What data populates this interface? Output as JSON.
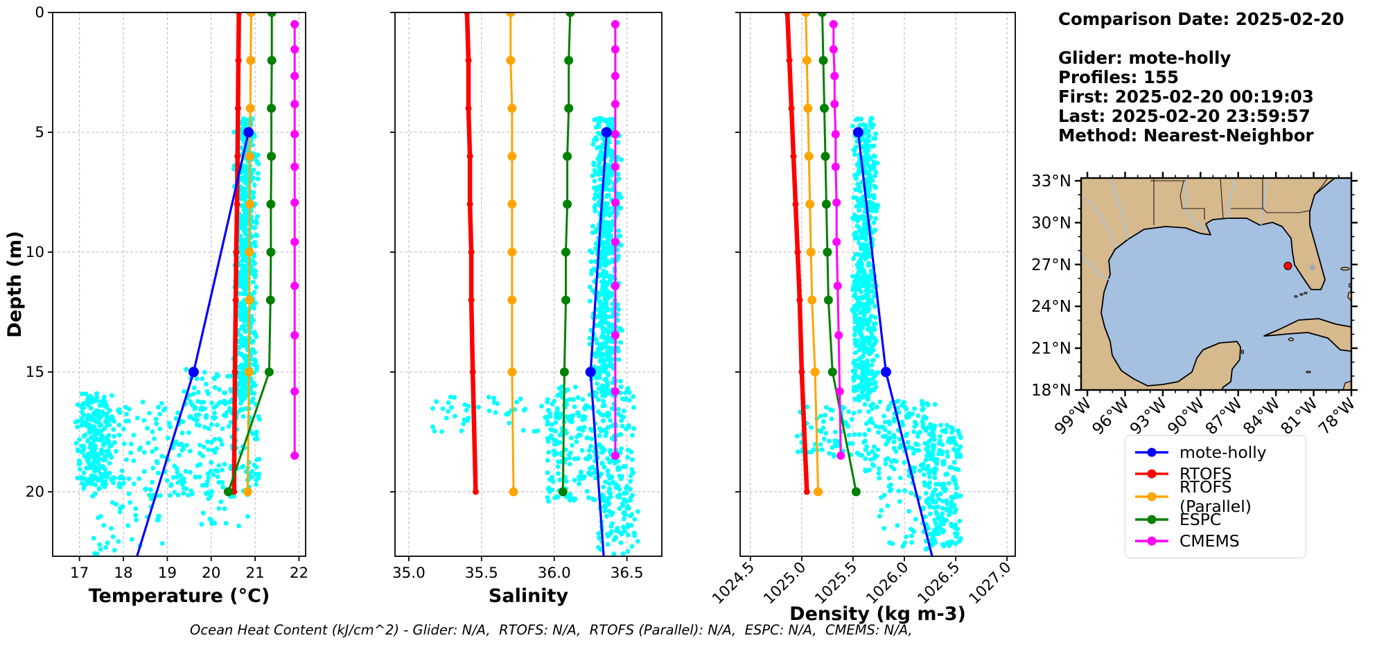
{
  "info": {
    "comparison_date": "Comparison Date: 2025-02-20",
    "glider": "Glider: mote-holly",
    "profiles": "Profiles: 155",
    "first": "First: 2025-02-20 00:19:03",
    "last": "Last: 2025-02-20 23:59:57",
    "method": "Method: Nearest-Neighbor"
  },
  "footer": "Ocean Heat Content (kJ/cm^2) - Glider: N/A,  RTOFS: N/A,  RTOFS (Parallel): N/A,  ESPC: N/A,  CMEMS: N/A,",
  "colors": {
    "glider_scatter": "#00ffff",
    "mote_holly": "#0000ff",
    "rtofs": "#ff0000",
    "rtofs_parallel": "#ffa500",
    "espc": "#008000",
    "cmems": "#ff00ff",
    "grid": "#b8b8b8"
  },
  "legend": {
    "entries": [
      {
        "label": "mote-holly",
        "color": "#0000ff"
      },
      {
        "label": "RTOFS",
        "color": "#ff0000"
      },
      {
        "label": "RTOFS (Parallel)",
        "color": "#ffa500"
      },
      {
        "label": "ESPC",
        "color": "#008000"
      },
      {
        "label": "CMEMS",
        "color": "#ff00ff"
      }
    ]
  },
  "map": {
    "land_color": "#d7b98e",
    "water_color": "#a5c0e0",
    "lake_color": "#a8a8a8",
    "lat_ticks": [
      {
        "deg": 33,
        "label": "33°N"
      },
      {
        "deg": 30,
        "label": "30°N"
      },
      {
        "deg": 27,
        "label": "27°N"
      },
      {
        "deg": 24,
        "label": "24°N"
      },
      {
        "deg": 21,
        "label": "21°N"
      },
      {
        "deg": 18,
        "label": "18°N"
      }
    ],
    "lon_ticks": [
      {
        "deg": -99,
        "label": "99°W"
      },
      {
        "deg": -96,
        "label": "96°W"
      },
      {
        "deg": -93,
        "label": "93°W"
      },
      {
        "deg": -90,
        "label": "90°W"
      },
      {
        "deg": -87,
        "label": "87°W"
      },
      {
        "deg": -84,
        "label": "84°W"
      },
      {
        "deg": -81,
        "label": "81°W"
      },
      {
        "deg": -78,
        "label": "78°W"
      }
    ],
    "marker": {
      "lon": -83.05,
      "lat": 26.9,
      "color": "#ff0000"
    }
  },
  "chart_data": [
    {
      "type": "scatter",
      "title": "",
      "xlabel": "Temperature (°C)",
      "ylabel": "Depth (m)",
      "xlim": [
        16.39,
        22.15
      ],
      "ylim": [
        0,
        22.69
      ],
      "xticks": [
        17,
        18,
        19,
        20,
        21,
        22
      ],
      "xtick_labels": [
        "17",
        "18",
        "19",
        "20",
        "21",
        "22"
      ],
      "yticks": [
        0,
        5,
        10,
        15,
        20
      ],
      "ytick_labels": [
        "0",
        "5",
        "10",
        "15",
        "20"
      ],
      "x_tick_rotation": 0,
      "show_ytick_labels": true,
      "series": [
        {
          "name": "glider-scatter",
          "color": "#00ffff",
          "marker_size": 3.4,
          "cloud": [
            {
              "x": [
                20.5,
                21.08
              ],
              "depth": [
                4.4,
                16.2
              ],
              "n": 620,
              "tri": true
            },
            {
              "x": [
                19.4,
                21.05
              ],
              "depth": [
                14.8,
                17.0
              ],
              "n": 60
            },
            {
              "x": [
                19.3,
                21.1
              ],
              "depth": [
                15.8,
                20.2
              ],
              "n": 170
            },
            {
              "x": [
                17.9,
                19.3
              ],
              "depth": [
                16.2,
                20.2
              ],
              "n": 90
            },
            {
              "x": [
                16.87,
                17.9
              ],
              "depth": [
                15.9,
                19.9
              ],
              "n": 260,
              "tri": true
            },
            {
              "x": [
                17.3,
                18.9
              ],
              "depth": [
                19.8,
                22.6
              ],
              "n": 40
            },
            {
              "x": [
                19.6,
                20.9
              ],
              "depth": [
                19.9,
                21.6
              ],
              "n": 14
            }
          ]
        },
        {
          "name": "RTOFS",
          "color": "#ff0000",
          "lw": 6.5,
          "marker_size": 4.5,
          "marker_indices": "all",
          "points": [
            [
              20.63,
              0
            ],
            [
              20.62,
              2
            ],
            [
              20.61,
              4
            ],
            [
              20.6,
              6
            ],
            [
              20.59,
              8
            ],
            [
              20.57,
              10
            ],
            [
              20.56,
              12
            ],
            [
              20.54,
              15
            ],
            [
              20.52,
              20
            ]
          ]
        },
        {
          "name": "RTOFS (Parallel)",
          "color": "#ffa500",
          "lw": 3,
          "marker_size": 6.5,
          "marker_indices": "all",
          "points": [
            [
              20.91,
              0
            ],
            [
              20.9,
              2
            ],
            [
              20.89,
              4
            ],
            [
              20.88,
              6
            ],
            [
              20.88,
              8
            ],
            [
              20.87,
              10
            ],
            [
              20.87,
              12
            ],
            [
              20.86,
              15
            ],
            [
              20.83,
              20
            ]
          ]
        },
        {
          "name": "ESPC",
          "color": "#008000",
          "lw": 3,
          "marker_size": 6.5,
          "marker_indices": "all",
          "points": [
            [
              21.38,
              0
            ],
            [
              21.38,
              2
            ],
            [
              21.37,
              4
            ],
            [
              21.37,
              6
            ],
            [
              21.36,
              8
            ],
            [
              21.36,
              10
            ],
            [
              21.35,
              12
            ],
            [
              21.32,
              15
            ],
            [
              20.39,
              20
            ]
          ]
        },
        {
          "name": "CMEMS",
          "color": "#ff00ff",
          "lw": 3,
          "marker_size": 6,
          "marker_indices": "all",
          "points": [
            [
              21.9,
              0.49
            ],
            [
              21.9,
              1.54
            ],
            [
              21.9,
              2.65
            ],
            [
              21.9,
              3.82
            ],
            [
              21.9,
              5.08
            ],
            [
              21.9,
              6.44
            ],
            [
              21.9,
              7.93
            ],
            [
              21.9,
              9.57
            ],
            [
              21.9,
              11.41
            ],
            [
              21.9,
              13.47
            ],
            [
              21.9,
              15.81
            ],
            [
              21.9,
              18.49
            ]
          ]
        },
        {
          "name": "mote-holly",
          "color": "#0000ff",
          "lw": 3.2,
          "marker_size": 7.5,
          "marker_indices": [
            0,
            1
          ],
          "points": [
            [
              20.85,
              5
            ],
            [
              19.6,
              15
            ],
            [
              18.31,
              22.69
            ]
          ]
        }
      ]
    },
    {
      "type": "scatter",
      "title": "",
      "xlabel": "Salinity",
      "ylabel": "",
      "xlim": [
        34.905,
        36.74
      ],
      "ylim": [
        0,
        22.69
      ],
      "xticks": [
        35.0,
        35.5,
        36.0,
        36.5
      ],
      "xtick_labels": [
        "35.0",
        "35.5",
        "36.0",
        "36.5"
      ],
      "yticks": [
        0,
        5,
        10,
        15,
        20
      ],
      "ytick_labels": [
        "0",
        "5",
        "10",
        "15",
        "20"
      ],
      "x_tick_rotation": 0,
      "show_ytick_labels": false,
      "series": [
        {
          "name": "glider-scatter",
          "color": "#00ffff",
          "marker_size": 3.4,
          "cloud": [
            {
              "x": [
                36.24,
                36.47
              ],
              "depth": [
                4.4,
                16.0
              ],
              "n": 620,
              "tri": true
            },
            {
              "x": [
                35.15,
                36.0
              ],
              "depth": [
                16.0,
                17.5
              ],
              "n": 45
            },
            {
              "x": [
                35.95,
                36.55
              ],
              "depth": [
                15.6,
                20.4
              ],
              "n": 330
            },
            {
              "x": [
                36.3,
                36.58
              ],
              "depth": [
                20.2,
                22.6
              ],
              "n": 70
            }
          ]
        },
        {
          "name": "RTOFS",
          "color": "#ff0000",
          "lw": 6.5,
          "marker_size": 4.5,
          "marker_indices": "all",
          "points": [
            [
              35.4,
              0
            ],
            [
              35.41,
              2
            ],
            [
              35.41,
              4
            ],
            [
              35.42,
              6
            ],
            [
              35.42,
              8
            ],
            [
              35.43,
              10
            ],
            [
              35.43,
              12
            ],
            [
              35.44,
              15
            ],
            [
              35.46,
              20
            ]
          ]
        },
        {
          "name": "RTOFS (Parallel)",
          "color": "#ffa500",
          "lw": 3,
          "marker_size": 6.5,
          "marker_indices": "all",
          "points": [
            [
              35.7,
              0
            ],
            [
              35.7,
              2
            ],
            [
              35.71,
              4
            ],
            [
              35.71,
              6
            ],
            [
              35.71,
              8
            ],
            [
              35.71,
              10
            ],
            [
              35.71,
              12
            ],
            [
              35.71,
              15
            ],
            [
              35.72,
              20
            ]
          ]
        },
        {
          "name": "ESPC",
          "color": "#008000",
          "lw": 3,
          "marker_size": 6.5,
          "marker_indices": "all",
          "points": [
            [
              36.11,
              0
            ],
            [
              36.1,
              2
            ],
            [
              36.1,
              4
            ],
            [
              36.09,
              6
            ],
            [
              36.09,
              8
            ],
            [
              36.08,
              10
            ],
            [
              36.08,
              12
            ],
            [
              36.07,
              15
            ],
            [
              36.06,
              20
            ]
          ]
        },
        {
          "name": "CMEMS",
          "color": "#ff00ff",
          "lw": 3,
          "marker_size": 6,
          "marker_indices": "all",
          "points": [
            [
              36.42,
              0.49
            ],
            [
              36.42,
              1.54
            ],
            [
              36.42,
              2.65
            ],
            [
              36.42,
              3.82
            ],
            [
              36.42,
              5.08
            ],
            [
              36.42,
              6.44
            ],
            [
              36.42,
              7.93
            ],
            [
              36.42,
              9.57
            ],
            [
              36.42,
              11.41
            ],
            [
              36.42,
              13.47
            ],
            [
              36.42,
              15.81
            ],
            [
              36.42,
              18.49
            ]
          ]
        },
        {
          "name": "mote-holly",
          "color": "#0000ff",
          "lw": 3.2,
          "marker_size": 7.5,
          "marker_indices": [
            0,
            1
          ],
          "points": [
            [
              36.36,
              5
            ],
            [
              36.25,
              15
            ],
            [
              36.34,
              22.69
            ]
          ]
        }
      ]
    },
    {
      "type": "scatter",
      "title": "",
      "xlabel": "Density (kg m-3)",
      "ylabel": "",
      "xlim": [
        1024.4,
        1027.08
      ],
      "ylim": [
        0,
        22.69
      ],
      "xticks": [
        1024.5,
        1025.0,
        1025.5,
        1026.0,
        1026.5,
        1027.0
      ],
      "xtick_labels": [
        "1024.5",
        "1025.0",
        "1025.5",
        "1026.0",
        "1026.5",
        "1027.0"
      ],
      "yticks": [
        0,
        5,
        10,
        15,
        20
      ],
      "ytick_labels": [
        "0",
        "5",
        "10",
        "15",
        "20"
      ],
      "x_tick_rotation": 45,
      "show_ytick_labels": false,
      "series": [
        {
          "name": "glider-scatter",
          "color": "#00ffff",
          "marker_size": 3.4,
          "cloud": [
            {
              "x": [
                1025.47,
                1025.75
              ],
              "depth": [
                4.4,
                16.2
              ],
              "n": 620,
              "tri": true
            },
            {
              "x": [
                1024.93,
                1025.6
              ],
              "depth": [
                16.4,
                18.6
              ],
              "n": 70
            },
            {
              "x": [
                1025.6,
                1026.3
              ],
              "depth": [
                16.2,
                19.2
              ],
              "n": 150
            },
            {
              "x": [
                1026.18,
                1026.55
              ],
              "depth": [
                17.2,
                22.5
              ],
              "n": 230
            },
            {
              "x": [
                1025.75,
                1026.15
              ],
              "depth": [
                19.0,
                22.3
              ],
              "n": 40
            }
          ]
        },
        {
          "name": "RTOFS",
          "color": "#ff0000",
          "lw": 6.5,
          "marker_size": 4.5,
          "marker_indices": "all",
          "points": [
            [
              1024.86,
              0
            ],
            [
              1024.88,
              2
            ],
            [
              1024.9,
              4
            ],
            [
              1024.92,
              6
            ],
            [
              1024.94,
              8
            ],
            [
              1024.96,
              10
            ],
            [
              1024.98,
              12
            ],
            [
              1025.0,
              15
            ],
            [
              1025.05,
              20
            ]
          ]
        },
        {
          "name": "RTOFS (Parallel)",
          "color": "#ffa500",
          "lw": 3,
          "marker_size": 6.5,
          "marker_indices": "all",
          "points": [
            [
              1025.04,
              0
            ],
            [
              1025.05,
              2
            ],
            [
              1025.06,
              4
            ],
            [
              1025.07,
              6
            ],
            [
              1025.08,
              8
            ],
            [
              1025.09,
              10
            ],
            [
              1025.1,
              12
            ],
            [
              1025.13,
              15
            ],
            [
              1025.16,
              20
            ]
          ]
        },
        {
          "name": "ESPC",
          "color": "#008000",
          "lw": 3,
          "marker_size": 6.5,
          "marker_indices": "all",
          "points": [
            [
              1025.2,
              0
            ],
            [
              1025.21,
              2
            ],
            [
              1025.22,
              4
            ],
            [
              1025.23,
              6
            ],
            [
              1025.24,
              8
            ],
            [
              1025.25,
              10
            ],
            [
              1025.26,
              12
            ],
            [
              1025.3,
              15
            ],
            [
              1025.53,
              20
            ]
          ]
        },
        {
          "name": "CMEMS",
          "color": "#ff00ff",
          "lw": 3,
          "marker_size": 6,
          "marker_indices": "all",
          "points": [
            [
              1025.31,
              0.49
            ],
            [
              1025.31,
              1.54
            ],
            [
              1025.32,
              2.65
            ],
            [
              1025.32,
              3.82
            ],
            [
              1025.33,
              5.08
            ],
            [
              1025.33,
              6.44
            ],
            [
              1025.34,
              7.93
            ],
            [
              1025.34,
              9.57
            ],
            [
              1025.35,
              11.41
            ],
            [
              1025.36,
              13.47
            ],
            [
              1025.37,
              15.81
            ],
            [
              1025.38,
              18.49
            ]
          ]
        },
        {
          "name": "mote-holly",
          "color": "#0000ff",
          "lw": 3.2,
          "marker_size": 7.5,
          "marker_indices": [
            0,
            1
          ],
          "points": [
            [
              1025.55,
              5
            ],
            [
              1025.82,
              15
            ],
            [
              1026.27,
              22.69
            ]
          ]
        }
      ]
    }
  ]
}
